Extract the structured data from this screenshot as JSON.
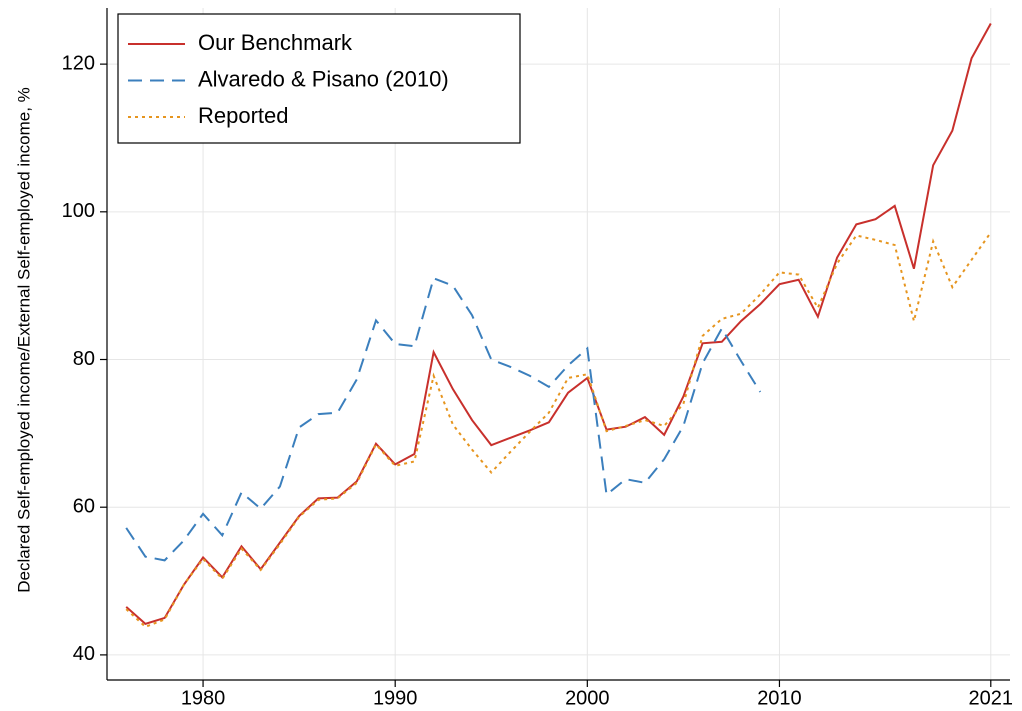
{
  "chart_data": {
    "type": "line",
    "y_label": "Declared Self-employed income/External Self-employed income, %",
    "x": [
      1976,
      1977,
      1978,
      1979,
      1980,
      1981,
      1982,
      1983,
      1984,
      1985,
      1986,
      1987,
      1988,
      1989,
      1990,
      1991,
      1992,
      1993,
      1994,
      1995,
      1996,
      1997,
      1998,
      1999,
      2000,
      2001,
      2002,
      2003,
      2004,
      2005,
      2006,
      2007,
      2008,
      2009,
      2010,
      2011,
      2012,
      2013,
      2014,
      2015,
      2016,
      2017,
      2018,
      2019,
      2020,
      2021
    ],
    "series": [
      {
        "name": "Our Benchmark",
        "color": "#c8302c",
        "dash": "solid",
        "values": [
          46.5,
          44.2,
          45,
          49.5,
          53.2,
          50.5,
          54.7,
          51.6,
          55.2,
          58.8,
          61.2,
          61.3,
          63.5,
          68.6,
          65.8,
          67.2,
          81,
          76,
          71.8,
          68.4,
          69.4,
          70.4,
          71.5,
          75.5,
          77.5,
          70.5,
          70.9,
          72.2,
          69.8,
          75,
          82.2,
          82.4,
          85.2,
          87.5,
          90.2,
          90.8,
          85.8,
          93.8,
          98.3,
          99,
          100.8,
          92.3,
          106.3,
          111,
          120.8,
          125.5
        ]
      },
      {
        "name": "Alvaredo & Pisano (2010)",
        "color": "#3b7fbd",
        "dash": "dashed",
        "values": [
          57.2,
          53.3,
          52.8,
          55.5,
          59.1,
          56.2,
          62,
          59.8,
          62.8,
          70.8,
          72.6,
          72.8,
          77.3,
          85.3,
          82.1,
          81.8,
          91,
          90,
          86,
          80,
          79,
          77.8,
          76.3,
          79.2,
          81.5,
          61.7,
          63.8,
          63.3,
          66.5,
          71,
          79.5,
          84.2,
          79.8,
          75.6,
          null,
          null,
          null,
          null,
          null,
          null,
          null,
          null,
          null,
          null,
          null,
          null
        ]
      },
      {
        "name": "Reported",
        "color": "#e6951f",
        "dash": "dotted",
        "values": [
          46.2,
          43.8,
          44.8,
          49.5,
          53,
          50.3,
          54.4,
          51.5,
          55,
          58.7,
          61,
          61.2,
          63.3,
          68.5,
          65.6,
          66.2,
          77.8,
          71.2,
          67.8,
          64.7,
          67.5,
          70.2,
          72.8,
          77.5,
          78,
          70.3,
          71,
          71.8,
          71,
          74,
          83.2,
          85.5,
          86.2,
          88.8,
          91.8,
          91.5,
          87,
          93,
          96.8,
          96.2,
          95.5,
          85.2,
          96,
          89.8,
          93.5,
          97.2
        ]
      }
    ],
    "xlim": [
      1975,
      2022
    ],
    "xticks": [
      1980,
      1990,
      2000,
      2010,
      2021
    ],
    "ylim": [
      36.6,
      127.6
    ],
    "yticks": [
      40,
      60,
      80,
      100,
      120
    ],
    "grid": true,
    "legend": "upper left"
  }
}
